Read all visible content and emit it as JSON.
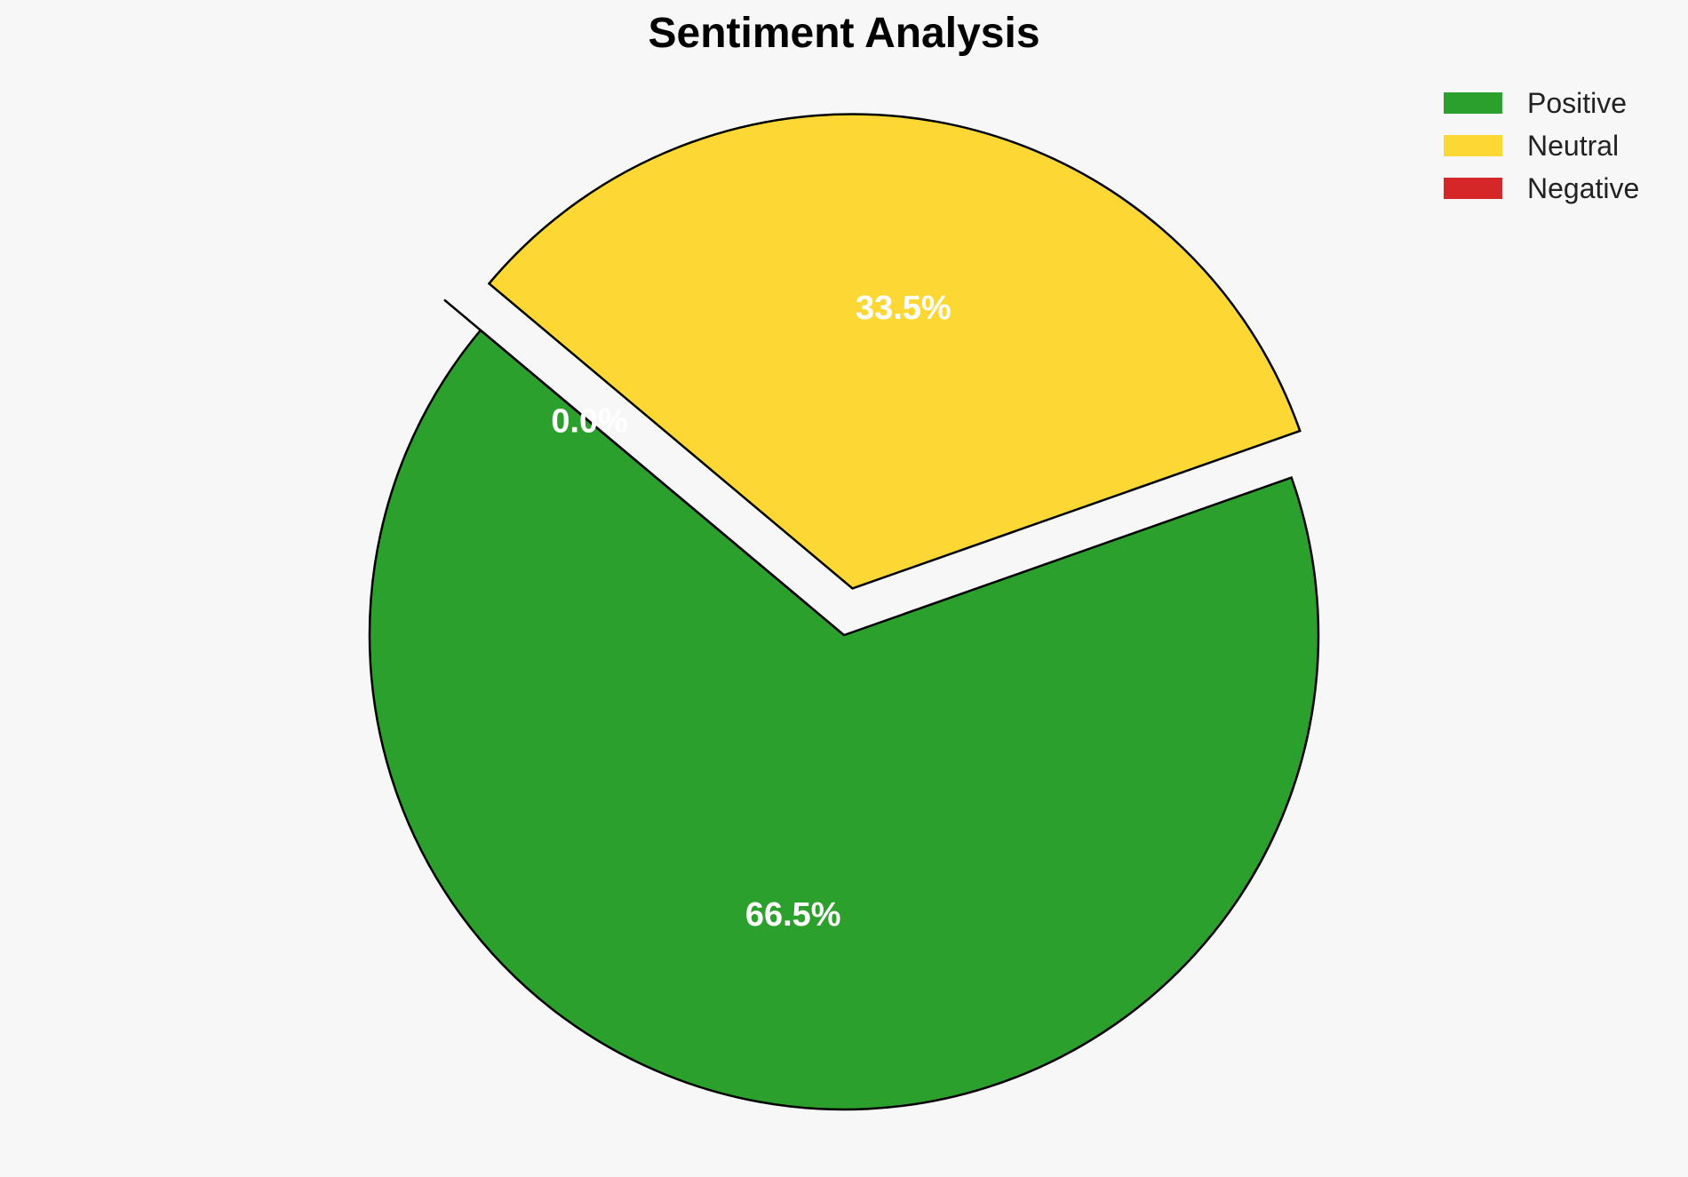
{
  "chart_data": {
    "type": "pie",
    "title": "Sentiment Analysis",
    "slices": [
      {
        "label": "Positive",
        "value": 66.5,
        "display": "66.5%",
        "color": "#2ca02c",
        "exploded": false
      },
      {
        "label": "Neutral",
        "value": 33.5,
        "display": "33.5%",
        "color": "#fdd835",
        "exploded": true
      },
      {
        "label": "Negative",
        "value": 0.0,
        "display": "0.0%",
        "color": "#d62728",
        "exploded": true
      }
    ],
    "start_angle_deg": 140,
    "legend": {
      "position": "top-right",
      "entries": [
        "Positive",
        "Neutral",
        "Negative"
      ]
    }
  }
}
